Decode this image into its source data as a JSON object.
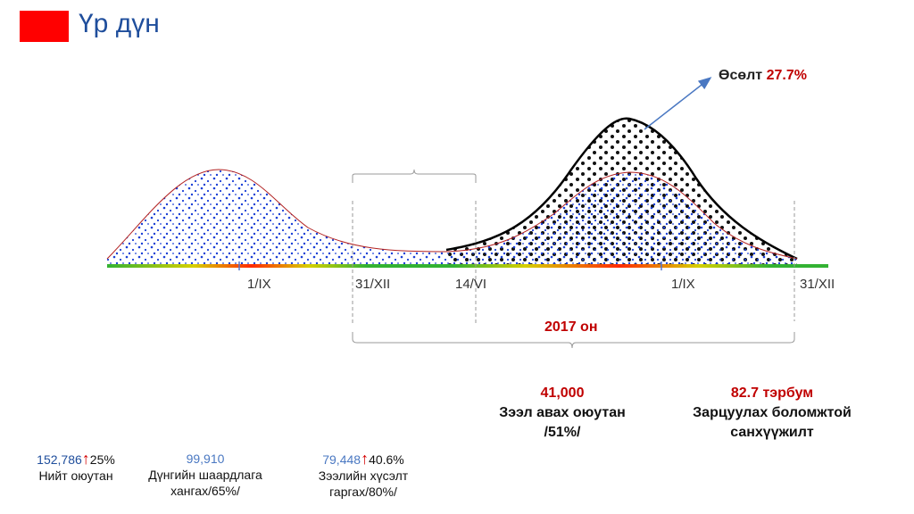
{
  "header": {
    "title": "Үр дүн"
  },
  "timeline": {
    "ticks": [
      "1/IX",
      "31/XII",
      "14/VI",
      "1/IX",
      "31/XII"
    ],
    "year_label": "2017 он"
  },
  "growth": {
    "label": "Өсөлт",
    "value": "27.7%"
  },
  "stats_right": [
    {
      "value": "41,000",
      "line1": "Зээл авах оюутан",
      "line2": "/51%/"
    },
    {
      "value": "82.7 тэрбум",
      "line1": "Зарцуулах боломжтой",
      "line2": "санхүүжилт"
    }
  ],
  "stats_bottom": [
    {
      "value": "152,786",
      "change": "25%",
      "line1": "Нийт оюутан",
      "line2": ""
    },
    {
      "value": "99,910",
      "change": "",
      "line1": "Дүнгийн шаардлага",
      "line2": "хангах/65%/"
    },
    {
      "value": "79,448",
      "change": "40.6%",
      "line1": "Зээлийн хүсэлт",
      "line2": "гаргах/80%/"
    }
  ],
  "colors": {
    "accent": "#ff0000",
    "title": "#1f4e9c",
    "highlight": "#c00000",
    "dots": "#1a3fd6"
  }
}
